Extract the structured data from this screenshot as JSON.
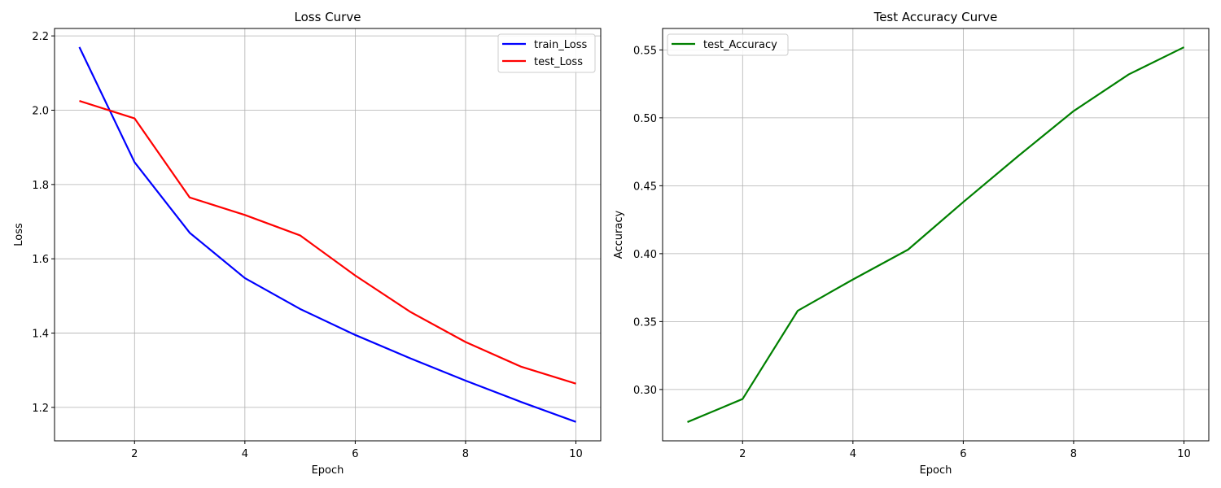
{
  "chart_data": [
    {
      "type": "line",
      "title": "Loss Curve",
      "xlabel": "Epoch",
      "ylabel": "Loss",
      "x": [
        1,
        2,
        3,
        4,
        5,
        6,
        7,
        8,
        9,
        10
      ],
      "series": [
        {
          "name": "train_Loss",
          "color": "#0000ff",
          "values": [
            2.17,
            1.86,
            1.67,
            1.548,
            1.465,
            1.395,
            1.332,
            1.272,
            1.215,
            1.161
          ]
        },
        {
          "name": "test_Loss",
          "color": "#ff0000",
          "values": [
            2.025,
            1.978,
            1.765,
            1.718,
            1.663,
            1.555,
            1.457,
            1.376,
            1.31,
            1.264
          ]
        }
      ],
      "xlim": [
        0.55,
        10.45
      ],
      "ylim": [
        1.11,
        2.22
      ],
      "xticks": [
        2,
        4,
        6,
        8,
        10
      ],
      "xtick_labels": [
        "2",
        "4",
        "6",
        "8",
        "10"
      ],
      "yticks": [
        1.2,
        1.4,
        1.6,
        1.8,
        2.0,
        2.2
      ],
      "ytick_labels": [
        "1.2",
        "1.4",
        "1.6",
        "1.8",
        "2.0",
        "2.2"
      ],
      "grid": true,
      "legend_position": "top-right"
    },
    {
      "type": "line",
      "title": "Test Accuracy Curve",
      "xlabel": "Epoch",
      "ylabel": "Accuracy",
      "x": [
        1,
        2,
        3,
        4,
        5,
        6,
        7,
        8,
        9,
        10
      ],
      "series": [
        {
          "name": "test_Accuracy",
          "color": "#008000",
          "values": [
            0.276,
            0.293,
            0.358,
            0.381,
            0.403,
            0.438,
            0.472,
            0.505,
            0.532,
            0.552
          ]
        }
      ],
      "xlim": [
        0.55,
        10.45
      ],
      "ylim": [
        0.2622,
        0.5658
      ],
      "xticks": [
        2,
        4,
        6,
        8,
        10
      ],
      "xtick_labels": [
        "2",
        "4",
        "6",
        "8",
        "10"
      ],
      "yticks": [
        0.3,
        0.35,
        0.4,
        0.45,
        0.5,
        0.55
      ],
      "ytick_labels": [
        "0.30",
        "0.35",
        "0.40",
        "0.45",
        "0.50",
        "0.55"
      ],
      "grid": true,
      "legend_position": "top-left"
    }
  ]
}
